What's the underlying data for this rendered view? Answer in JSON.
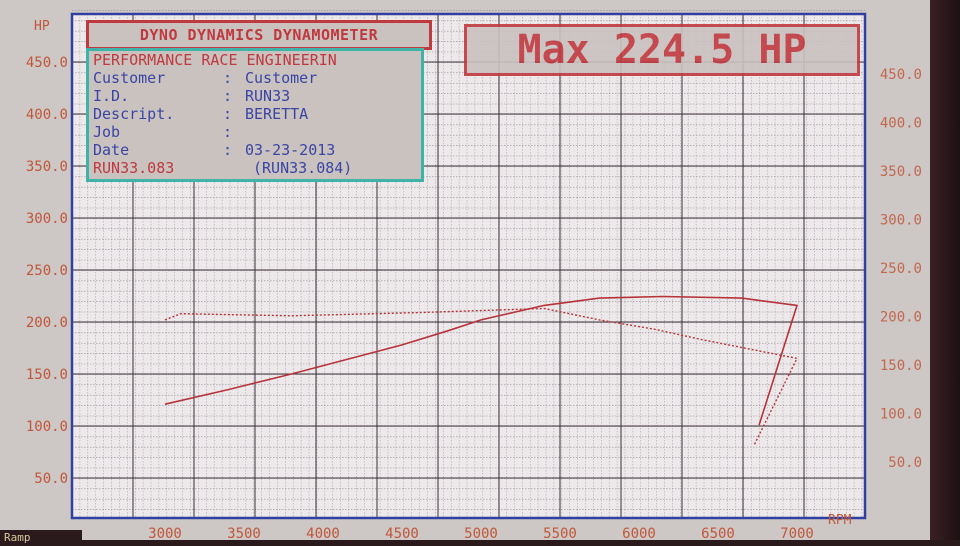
{
  "header": {
    "title": "DYNO DYNAMICS DYNAMOMETER",
    "shop": "PERFORMANCE RACE ENGINEERIN",
    "fields": [
      {
        "label": "Customer",
        "value": "Customer"
      },
      {
        "label": "I.D.",
        "value": "RUN33"
      },
      {
        "label": "Descript.",
        "value": "BERETTA"
      },
      {
        "label": "Job",
        "value": ""
      },
      {
        "label": "Date",
        "value": "03-23-2013"
      }
    ],
    "run_primary": "RUN33.083",
    "run_compare": "(RUN33.084)",
    "max_label": "Max 224.5 HP"
  },
  "footer": {
    "mode": "Ramp"
  },
  "colors": {
    "curve": "#b8323a",
    "axis_text": "#c0573a",
    "plot_border": "#3040a0",
    "info_border": "#3fb3a8"
  },
  "chart_data": {
    "type": "line",
    "xlabel": "RPM",
    "ylabel": "HP",
    "xlim": [
      2400,
      7400
    ],
    "ylim": [
      0,
      475
    ],
    "x_ticks": [
      "3000",
      "3500",
      "4000",
      "4500",
      "5000",
      "5500",
      "6000",
      "6500",
      "7000"
    ],
    "y_ticks_left": [
      "50.0",
      "100.0",
      "150.0",
      "200.0",
      "250.0",
      "300.0",
      "350.0",
      "400.0",
      "450.0"
    ],
    "y_ticks_right": [
      "50.0",
      "100.0",
      "150.0",
      "200.0",
      "250.0",
      "300.0",
      "350.0",
      "400.0",
      "450.0"
    ],
    "grid": true,
    "series": [
      {
        "style": "solid",
        "points": [
          [
            3000,
            121
          ],
          [
            3400,
            135
          ],
          [
            3800,
            150
          ],
          [
            4200,
            166
          ],
          [
            4500,
            178
          ],
          [
            4800,
            192
          ],
          [
            5000,
            202
          ],
          [
            5400,
            216
          ],
          [
            5750,
            223
          ],
          [
            6150,
            224.5
          ],
          [
            6650,
            223
          ],
          [
            7000,
            216
          ],
          [
            6760,
            101
          ]
        ]
      },
      {
        "style": "dashed",
        "points": [
          [
            3000,
            202
          ],
          [
            3100,
            208
          ],
          [
            3800,
            206
          ],
          [
            4600,
            209
          ],
          [
            5400,
            213
          ],
          [
            5750,
            202
          ],
          [
            6100,
            193
          ],
          [
            6400,
            183
          ],
          [
            7000,
            165
          ],
          [
            6730,
            82
          ]
        ]
      }
    ]
  }
}
